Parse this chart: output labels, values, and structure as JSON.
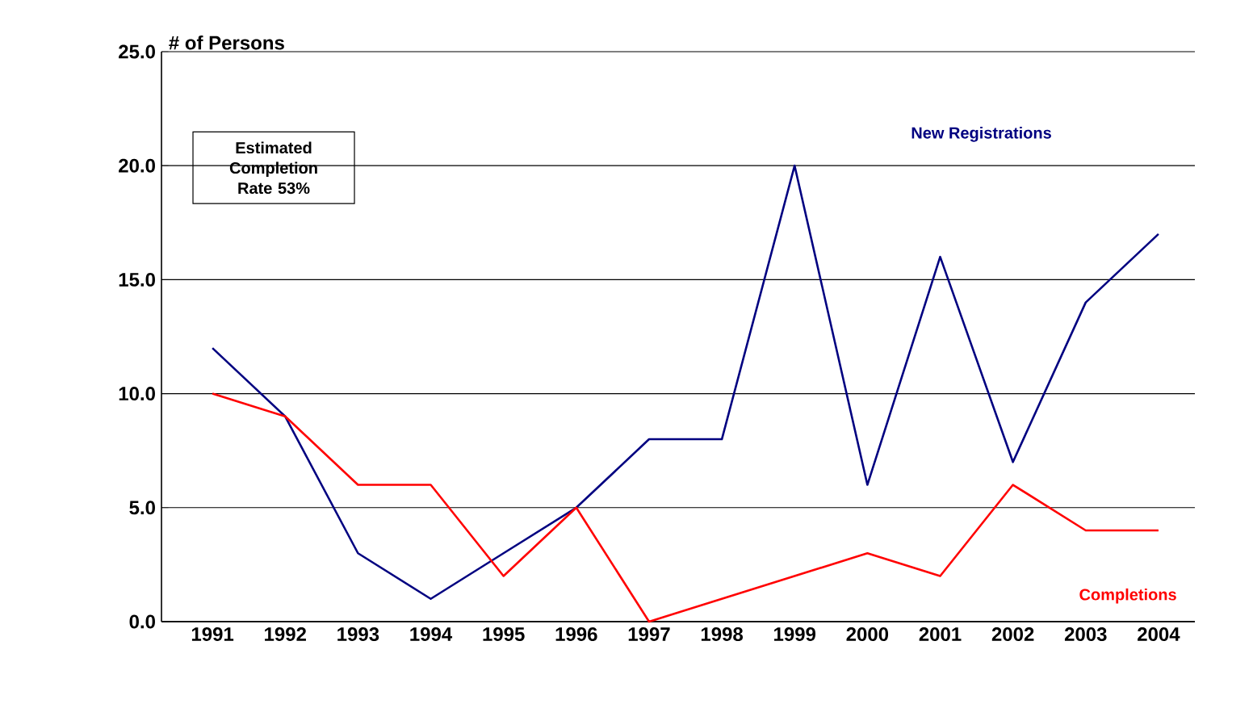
{
  "chart_data": {
    "type": "line",
    "ylabel": "# of Persons",
    "categories": [
      "1991",
      "1992",
      "1993",
      "1994",
      "1995",
      "1996",
      "1997",
      "1998",
      "1999",
      "2000",
      "2001",
      "2002",
      "2003",
      "2004"
    ],
    "series": [
      {
        "name": "New Registrations",
        "color": "#000080",
        "values": [
          12,
          9,
          3,
          1,
          3,
          5,
          8,
          8,
          20,
          6,
          16,
          7,
          14,
          17
        ]
      },
      {
        "name": "Completions",
        "color": "#ff0000",
        "values": [
          10,
          9,
          6,
          6,
          2,
          5,
          0,
          1,
          2,
          3,
          2,
          6,
          4,
          4
        ]
      }
    ],
    "ylim": [
      0,
      25
    ],
    "yticks": [
      {
        "value": 0,
        "label": "0.0"
      },
      {
        "value": 5,
        "label": "5.0"
      },
      {
        "value": 10,
        "label": "10.0"
      },
      {
        "value": 15,
        "label": "15.0"
      },
      {
        "value": 20,
        "label": "20.0"
      },
      {
        "value": 25,
        "label": "25.0"
      }
    ],
    "grid": "y",
    "marker": "none",
    "line_style": "solid",
    "annotations": [
      "Estimated Completion Rate 53%"
    ]
  }
}
